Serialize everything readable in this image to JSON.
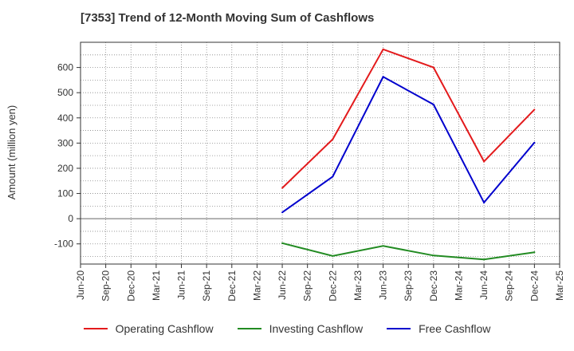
{
  "chart_data": {
    "type": "line",
    "title": "[7353]  Trend of 12-Month Moving Sum of Cashflows",
    "xlabel": "",
    "ylabel": "Amount (million yen)",
    "x": [
      "Jun-20",
      "Sep-20",
      "Dec-20",
      "Mar-21",
      "Jun-21",
      "Sep-21",
      "Dec-21",
      "Mar-22",
      "Jun-22",
      "Sep-22",
      "Dec-22",
      "Mar-23",
      "Jun-23",
      "Sep-23",
      "Dec-23",
      "Mar-24",
      "Jun-24",
      "Sep-24",
      "Dec-24",
      "Mar-25"
    ],
    "ylim": [
      -180,
      700
    ],
    "yticks": [
      -100,
      0,
      100,
      200,
      300,
      400,
      500,
      600
    ],
    "ytick_labels": [
      "-100",
      "0",
      "100",
      "200",
      "300",
      "400",
      "500",
      "600"
    ],
    "grid": true,
    "legend_position": "bottom",
    "series": [
      {
        "name": "Operating Cashflow",
        "color": "#e31a1c",
        "values": [
          null,
          null,
          null,
          null,
          null,
          null,
          null,
          null,
          122,
          null,
          315,
          null,
          672,
          null,
          600,
          null,
          227,
          null,
          433,
          null
        ]
      },
      {
        "name": "Investing Cashflow",
        "color": "#228b22",
        "values": [
          null,
          null,
          null,
          null,
          null,
          null,
          null,
          null,
          -97,
          null,
          -148,
          null,
          -108,
          null,
          -146,
          null,
          -162,
          null,
          -133,
          null
        ]
      },
      {
        "name": "Free Cashflow",
        "color": "#0000cd",
        "values": [
          null,
          null,
          null,
          null,
          null,
          null,
          null,
          null,
          25,
          null,
          167,
          null,
          563,
          null,
          453,
          null,
          64,
          null,
          302,
          null
        ]
      }
    ]
  }
}
